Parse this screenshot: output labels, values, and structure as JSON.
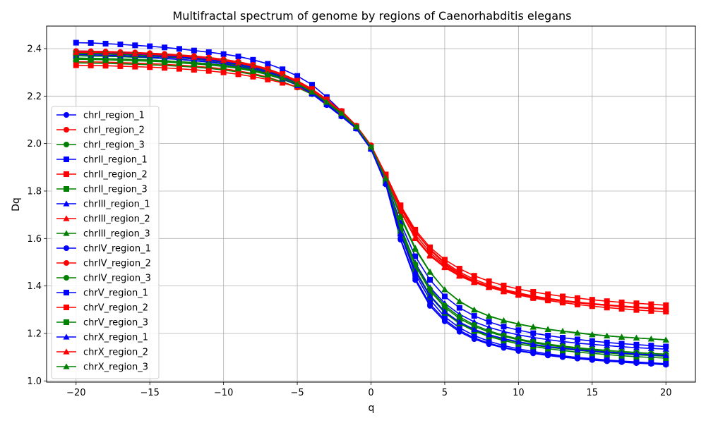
{
  "chart_data": {
    "type": "line",
    "title": "Multifractal spectrum of genome by regions of Caenorhabditis elegans",
    "xlabel": "q",
    "ylabel": "Dq",
    "xlim": [
      -22,
      22
    ],
    "ylim": [
      0.995,
      2.495
    ],
    "xticks": [
      -20,
      -15,
      -10,
      -5,
      0,
      5,
      10,
      15,
      20
    ],
    "yticks": [
      1.0,
      1.2,
      1.4,
      1.6,
      1.8,
      2.0,
      2.2,
      2.4
    ],
    "grid": true,
    "legend_position": "center-left",
    "x": [
      -20,
      -19,
      -18,
      -17,
      -16,
      -15,
      -14,
      -13,
      -12,
      -11,
      -10,
      -9,
      -8,
      -7,
      -6,
      -5,
      -4,
      -3,
      -2,
      -1,
      0,
      1,
      2,
      3,
      4,
      5,
      6,
      7,
      8,
      9,
      10,
      11,
      12,
      13,
      14,
      15,
      16,
      17,
      18,
      19,
      20
    ],
    "series": [
      {
        "name": "chrI_region_1",
        "color": "#0000ff",
        "marker": "circle",
        "values": [
          2.38,
          2.379,
          2.377,
          2.375,
          2.372,
          2.369,
          2.365,
          2.361,
          2.356,
          2.35,
          2.342,
          2.333,
          2.32,
          2.303,
          2.281,
          2.25,
          2.209,
          2.162,
          2.114,
          2.063,
          1.977,
          1.83,
          1.595,
          1.425,
          1.316,
          1.251,
          1.207,
          1.176,
          1.155,
          1.139,
          1.126,
          1.116,
          1.107,
          1.1,
          1.094,
          1.088,
          1.083,
          1.079,
          1.075,
          1.072,
          1.068
        ]
      },
      {
        "name": "chrI_region_2",
        "color": "#ff0000",
        "marker": "circle",
        "values": [
          2.345,
          2.344,
          2.343,
          2.341,
          2.339,
          2.337,
          2.334,
          2.33,
          2.326,
          2.321,
          2.315,
          2.306,
          2.295,
          2.28,
          2.26,
          2.237,
          2.211,
          2.181,
          2.138,
          2.076,
          1.993,
          1.869,
          1.729,
          1.628,
          1.555,
          1.5,
          1.459,
          1.428,
          1.404,
          1.386,
          1.371,
          1.358,
          1.348,
          1.339,
          1.332,
          1.325,
          1.32,
          1.315,
          1.311,
          1.307,
          1.304
        ]
      },
      {
        "name": "chrI_region_3",
        "color": "#008000",
        "marker": "circle",
        "values": [
          2.34,
          2.339,
          2.338,
          2.336,
          2.334,
          2.332,
          2.329,
          2.326,
          2.322,
          2.317,
          2.31,
          2.302,
          2.291,
          2.277,
          2.259,
          2.236,
          2.208,
          2.172,
          2.126,
          2.067,
          1.982,
          1.847,
          1.637,
          1.47,
          1.361,
          1.292,
          1.246,
          1.214,
          1.192,
          1.175,
          1.162,
          1.151,
          1.142,
          1.135,
          1.129,
          1.123,
          1.118,
          1.114,
          1.11,
          1.107,
          1.104
        ]
      },
      {
        "name": "chrII_region_1",
        "color": "#0000ff",
        "marker": "square",
        "values": [
          2.425,
          2.424,
          2.421,
          2.418,
          2.414,
          2.41,
          2.405,
          2.399,
          2.392,
          2.385,
          2.377,
          2.367,
          2.353,
          2.336,
          2.313,
          2.285,
          2.248,
          2.196,
          2.136,
          2.068,
          1.985,
          1.845,
          1.666,
          1.525,
          1.426,
          1.356,
          1.308,
          1.274,
          1.249,
          1.229,
          1.214,
          1.201,
          1.191,
          1.182,
          1.175,
          1.168,
          1.162,
          1.157,
          1.153,
          1.149,
          1.145
        ]
      },
      {
        "name": "chrII_region_2",
        "color": "#ff0000",
        "marker": "square",
        "values": [
          2.33,
          2.329,
          2.328,
          2.326,
          2.324,
          2.322,
          2.319,
          2.315,
          2.311,
          2.306,
          2.3,
          2.292,
          2.282,
          2.27,
          2.256,
          2.238,
          2.213,
          2.178,
          2.132,
          2.071,
          1.987,
          1.869,
          1.74,
          1.637,
          1.563,
          1.511,
          1.473,
          1.443,
          1.42,
          1.402,
          1.387,
          1.375,
          1.365,
          1.356,
          1.349,
          1.342,
          1.336,
          1.331,
          1.327,
          1.323,
          1.319
        ]
      },
      {
        "name": "chrII_region_3",
        "color": "#008000",
        "marker": "square",
        "values": [
          2.36,
          2.359,
          2.358,
          2.356,
          2.354,
          2.352,
          2.349,
          2.345,
          2.341,
          2.336,
          2.33,
          2.321,
          2.309,
          2.294,
          2.274,
          2.25,
          2.217,
          2.175,
          2.127,
          2.07,
          1.985,
          1.84,
          1.646,
          1.487,
          1.38,
          1.31,
          1.263,
          1.23,
          1.206,
          1.188,
          1.173,
          1.161,
          1.151,
          1.143,
          1.136,
          1.13,
          1.124,
          1.119,
          1.115,
          1.111,
          1.108
        ]
      },
      {
        "name": "chrIII_region_1",
        "color": "#0000ff",
        "marker": "triangle",
        "values": [
          2.37,
          2.369,
          2.368,
          2.366,
          2.364,
          2.361,
          2.358,
          2.354,
          2.349,
          2.343,
          2.336,
          2.327,
          2.315,
          2.299,
          2.28,
          2.255,
          2.22,
          2.175,
          2.124,
          2.066,
          1.98,
          1.839,
          1.649,
          1.497,
          1.394,
          1.327,
          1.281,
          1.249,
          1.226,
          1.208,
          1.194,
          1.183,
          1.174,
          1.166,
          1.159,
          1.154,
          1.149,
          1.144,
          1.14,
          1.137,
          1.134
        ]
      },
      {
        "name": "chrIII_region_2",
        "color": "#ff0000",
        "marker": "triangle",
        "values": [
          2.38,
          2.379,
          2.378,
          2.376,
          2.374,
          2.371,
          2.368,
          2.364,
          2.359,
          2.353,
          2.345,
          2.335,
          2.322,
          2.305,
          2.282,
          2.255,
          2.222,
          2.181,
          2.133,
          2.073,
          1.99,
          1.868,
          1.718,
          1.605,
          1.532,
          1.482,
          1.445,
          1.417,
          1.396,
          1.379,
          1.366,
          1.355,
          1.346,
          1.338,
          1.331,
          1.325,
          1.32,
          1.315,
          1.311,
          1.307,
          1.304
        ]
      },
      {
        "name": "chrIII_region_3",
        "color": "#008000",
        "marker": "triangle",
        "values": [
          2.355,
          2.354,
          2.353,
          2.351,
          2.349,
          2.347,
          2.344,
          2.34,
          2.336,
          2.331,
          2.325,
          2.317,
          2.305,
          2.29,
          2.271,
          2.246,
          2.214,
          2.173,
          2.128,
          2.071,
          1.986,
          1.856,
          1.698,
          1.56,
          1.46,
          1.385,
          1.335,
          1.299,
          1.273,
          1.254,
          1.239,
          1.227,
          1.217,
          1.209,
          1.202,
          1.195,
          1.19,
          1.185,
          1.181,
          1.177,
          1.173
        ]
      },
      {
        "name": "chrIV_region_1",
        "color": "#0000ff",
        "marker": "circle",
        "values": [
          2.39,
          2.389,
          2.387,
          2.385,
          2.382,
          2.379,
          2.375,
          2.37,
          2.365,
          2.358,
          2.35,
          2.34,
          2.326,
          2.308,
          2.284,
          2.254,
          2.214,
          2.165,
          2.115,
          2.063,
          1.976,
          1.828,
          1.6,
          1.432,
          1.324,
          1.258,
          1.213,
          1.181,
          1.159,
          1.142,
          1.129,
          1.118,
          1.109,
          1.102,
          1.095,
          1.09,
          1.085,
          1.08,
          1.076,
          1.073,
          1.07
        ]
      },
      {
        "name": "chrIV_region_2",
        "color": "#ff0000",
        "marker": "circle",
        "values": [
          2.39,
          2.389,
          2.388,
          2.386,
          2.384,
          2.381,
          2.378,
          2.374,
          2.369,
          2.363,
          2.355,
          2.345,
          2.332,
          2.315,
          2.292,
          2.262,
          2.226,
          2.183,
          2.136,
          2.074,
          1.989,
          1.866,
          1.73,
          1.617,
          1.541,
          1.488,
          1.45,
          1.421,
          1.399,
          1.382,
          1.368,
          1.356,
          1.347,
          1.339,
          1.332,
          1.326,
          1.32,
          1.316,
          1.311,
          1.308,
          1.304
        ]
      },
      {
        "name": "chrIV_region_3",
        "color": "#008000",
        "marker": "circle",
        "values": [
          2.37,
          2.369,
          2.368,
          2.366,
          2.364,
          2.362,
          2.359,
          2.355,
          2.35,
          2.345,
          2.338,
          2.329,
          2.317,
          2.301,
          2.28,
          2.253,
          2.218,
          2.173,
          2.123,
          2.066,
          1.981,
          1.843,
          1.651,
          1.492,
          1.387,
          1.318,
          1.27,
          1.236,
          1.211,
          1.192,
          1.177,
          1.165,
          1.155,
          1.147,
          1.14,
          1.134,
          1.129,
          1.124,
          1.12,
          1.116,
          1.113
        ]
      },
      {
        "name": "chrV_region_1",
        "color": "#0000ff",
        "marker": "square",
        "values": [
          2.375,
          2.374,
          2.372,
          2.37,
          2.367,
          2.364,
          2.36,
          2.355,
          2.35,
          2.344,
          2.336,
          2.326,
          2.313,
          2.296,
          2.274,
          2.246,
          2.21,
          2.165,
          2.117,
          2.064,
          1.978,
          1.833,
          1.62,
          1.45,
          1.342,
          1.27,
          1.224,
          1.191,
          1.167,
          1.149,
          1.135,
          1.124,
          1.114,
          1.106,
          1.099,
          1.094,
          1.088,
          1.084,
          1.08,
          1.076,
          1.073
        ]
      },
      {
        "name": "chrV_region_2",
        "color": "#ff0000",
        "marker": "square",
        "values": [
          2.38,
          2.379,
          2.378,
          2.376,
          2.374,
          2.372,
          2.369,
          2.365,
          2.361,
          2.356,
          2.349,
          2.34,
          2.328,
          2.313,
          2.293,
          2.265,
          2.23,
          2.186,
          2.136,
          2.073,
          1.987,
          1.87,
          1.737,
          1.63,
          1.552,
          1.494,
          1.453,
          1.421,
          1.396,
          1.377,
          1.362,
          1.349,
          1.339,
          1.33,
          1.322,
          1.315,
          1.309,
          1.304,
          1.299,
          1.295,
          1.292
        ]
      },
      {
        "name": "chrV_region_3",
        "color": "#008000",
        "marker": "square",
        "values": [
          2.38,
          2.379,
          2.378,
          2.376,
          2.373,
          2.37,
          2.367,
          2.363,
          2.358,
          2.352,
          2.344,
          2.334,
          2.321,
          2.304,
          2.281,
          2.252,
          2.214,
          2.168,
          2.121,
          2.068,
          1.983,
          1.836,
          1.63,
          1.463,
          1.356,
          1.287,
          1.242,
          1.21,
          1.187,
          1.17,
          1.156,
          1.145,
          1.136,
          1.128,
          1.121,
          1.116,
          1.111,
          1.106,
          1.102,
          1.099,
          1.096
        ]
      },
      {
        "name": "chrX_region_1",
        "color": "#0000ff",
        "marker": "triangle",
        "values": [
          2.385,
          2.384,
          2.382,
          2.38,
          2.377,
          2.374,
          2.37,
          2.365,
          2.36,
          2.353,
          2.345,
          2.334,
          2.32,
          2.302,
          2.279,
          2.25,
          2.212,
          2.166,
          2.117,
          2.064,
          1.978,
          1.834,
          1.62,
          1.461,
          1.358,
          1.292,
          1.248,
          1.217,
          1.195,
          1.178,
          1.165,
          1.154,
          1.145,
          1.138,
          1.131,
          1.126,
          1.121,
          1.117,
          1.113,
          1.11,
          1.107
        ]
      },
      {
        "name": "chrX_region_2",
        "color": "#ff0000",
        "marker": "triangle",
        "values": [
          2.385,
          2.384,
          2.383,
          2.381,
          2.379,
          2.376,
          2.373,
          2.369,
          2.364,
          2.358,
          2.35,
          2.34,
          2.327,
          2.31,
          2.288,
          2.259,
          2.224,
          2.182,
          2.134,
          2.073,
          1.988,
          1.864,
          1.715,
          1.6,
          1.527,
          1.478,
          1.442,
          1.415,
          1.394,
          1.378,
          1.364,
          1.353,
          1.344,
          1.336,
          1.329,
          1.323,
          1.318,
          1.313,
          1.309,
          1.305,
          1.302
        ]
      },
      {
        "name": "chrX_region_3",
        "color": "#008000",
        "marker": "triangle",
        "values": [
          2.36,
          2.359,
          2.358,
          2.356,
          2.354,
          2.352,
          2.349,
          2.345,
          2.341,
          2.336,
          2.33,
          2.322,
          2.31,
          2.295,
          2.276,
          2.25,
          2.217,
          2.175,
          2.128,
          2.071,
          1.986,
          1.854,
          1.69,
          1.555,
          1.458,
          1.385,
          1.336,
          1.3,
          1.274,
          1.255,
          1.24,
          1.228,
          1.218,
          1.21,
          1.203,
          1.196,
          1.19,
          1.185,
          1.181,
          1.177,
          1.173
        ]
      }
    ]
  }
}
